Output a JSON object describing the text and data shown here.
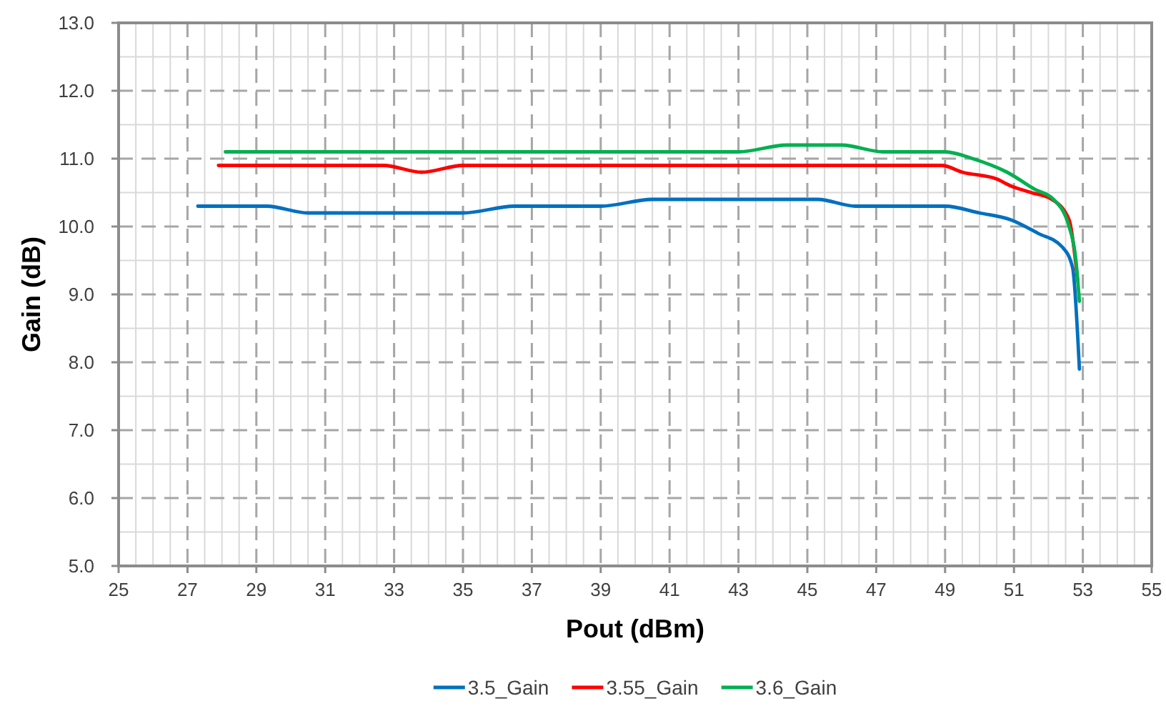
{
  "chart_data": {
    "type": "line",
    "xlabel": "Pout (dBm)",
    "ylabel": "Gain (dB)",
    "xlim": [
      25,
      55
    ],
    "ylim": [
      5,
      13
    ],
    "xticks": [
      25,
      {
        "value": 25.5,
        "label": null
      },
      {
        "value": 26,
        "label": null
      },
      {
        "value": 26.5,
        "label": null
      },
      27,
      {
        "value": 27.5,
        "label": null
      },
      {
        "value": 28,
        "label": null
      },
      {
        "value": 28.5,
        "label": null
      },
      29,
      {
        "value": 29.5,
        "label": null
      },
      {
        "value": 30,
        "label": null
      },
      {
        "value": 30.5,
        "label": null
      },
      31,
      {
        "value": 31.5,
        "label": null
      },
      {
        "value": 32,
        "label": null
      },
      {
        "value": 32.5,
        "label": null
      },
      33,
      {
        "value": 33.5,
        "label": null
      },
      {
        "value": 34,
        "label": null
      },
      {
        "value": 34.5,
        "label": null
      },
      35,
      {
        "value": 35.5,
        "label": null
      },
      {
        "value": 36,
        "label": null
      },
      {
        "value": 36.5,
        "label": null
      },
      37,
      {
        "value": 37.5,
        "label": null
      },
      {
        "value": 38,
        "label": null
      },
      {
        "value": 38.5,
        "label": null
      },
      39,
      {
        "value": 39.5,
        "label": null
      },
      {
        "value": 40,
        "label": null
      },
      {
        "value": 40.5,
        "label": null
      },
      41,
      {
        "value": 41.5,
        "label": null
      },
      {
        "value": 42,
        "label": null
      },
      {
        "value": 42.5,
        "label": null
      },
      43,
      {
        "value": 43.5,
        "label": null
      },
      {
        "value": 44,
        "label": null
      },
      {
        "value": 44.5,
        "label": null
      },
      45,
      {
        "value": 45.5,
        "label": null
      },
      {
        "value": 46,
        "label": null
      },
      {
        "value": 46.5,
        "label": null
      },
      47,
      {
        "value": 47.5,
        "label": null
      },
      {
        "value": 48,
        "label": null
      },
      {
        "value": 48.5,
        "label": null
      },
      49,
      {
        "value": 49.5,
        "label": null
      },
      {
        "value": 50,
        "label": null
      },
      {
        "value": 50.5,
        "label": null
      },
      51,
      {
        "value": 51.5,
        "label": null
      },
      {
        "value": 52,
        "label": null
      },
      {
        "value": 52.5,
        "label": null
      },
      53,
      {
        "value": 53.5,
        "label": null
      },
      {
        "value": 54,
        "label": null
      },
      {
        "value": 54.5,
        "label": null
      },
      55
    ],
    "yticks": [
      {
        "value": 5,
        "label": "5.0"
      },
      {
        "value": 5.5,
        "label": null
      },
      {
        "value": 6,
        "label": "6.0"
      },
      {
        "value": 6.5,
        "label": null
      },
      {
        "value": 7,
        "label": "7.0"
      },
      {
        "value": 7.5,
        "label": null
      },
      {
        "value": 8,
        "label": "8.0"
      },
      {
        "value": 8.5,
        "label": null
      },
      {
        "value": 9,
        "label": "9.0"
      },
      {
        "value": 9.5,
        "label": null
      },
      {
        "value": 10,
        "label": "10.0"
      },
      {
        "value": 10.5,
        "label": null
      },
      {
        "value": 11,
        "label": "11.0"
      },
      {
        "value": 11.5,
        "label": null
      },
      {
        "value": 12,
        "label": "12.0"
      },
      {
        "value": 12.5,
        "label": null
      },
      {
        "value": 13,
        "label": "13.0"
      }
    ],
    "grid": true,
    "legend": "bottom",
    "series": [
      {
        "name": "3.5_Gain",
        "color": "#0070c0",
        "x": [
          27.3,
          29.3,
          30.5,
          35,
          36.5,
          39,
          40.5,
          45.3,
          46.4,
          49,
          50,
          50.9,
          51.7,
          52.4,
          52.7,
          52.9
        ],
        "values": [
          10.3,
          10.3,
          10.2,
          10.2,
          10.3,
          10.3,
          10.4,
          10.4,
          10.3,
          10.3,
          10.2,
          10.1,
          9.9,
          9.7,
          9.4,
          7.9
        ]
      },
      {
        "name": "3.55_Gain",
        "color": "#ff0000",
        "x": [
          27.9,
          32.7,
          33.8,
          35,
          48.9,
          49.5,
          50.5,
          50.9,
          51.5,
          52.1,
          52.6,
          52.85
        ],
        "values": [
          10.9,
          10.9,
          10.8,
          10.9,
          10.9,
          10.8,
          10.7,
          10.6,
          10.5,
          10.4,
          10.1,
          9.2
        ]
      },
      {
        "name": "3.6_Gain",
        "color": "#00b050",
        "x": [
          28.1,
          43,
          44.4,
          46,
          47.2,
          49,
          49.8,
          50.8,
          51.6,
          52.15,
          52.6,
          52.8,
          52.9
        ],
        "values": [
          11.1,
          11.1,
          11.2,
          11.2,
          11.1,
          11.1,
          11,
          10.8,
          10.55,
          10.4,
          10,
          9.5,
          8.9
        ]
      }
    ]
  }
}
